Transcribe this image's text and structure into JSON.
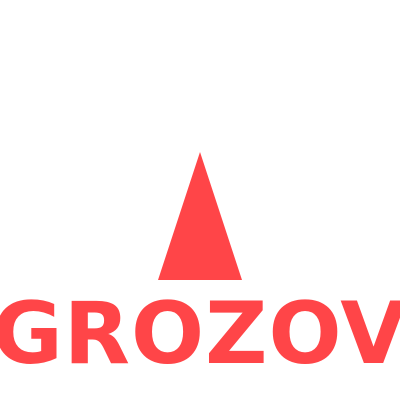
{
  "logo": {
    "icon": "triangle-icon",
    "wordmark": "GROZOV",
    "color": "#ff4548"
  },
  "background": "#ffffff"
}
